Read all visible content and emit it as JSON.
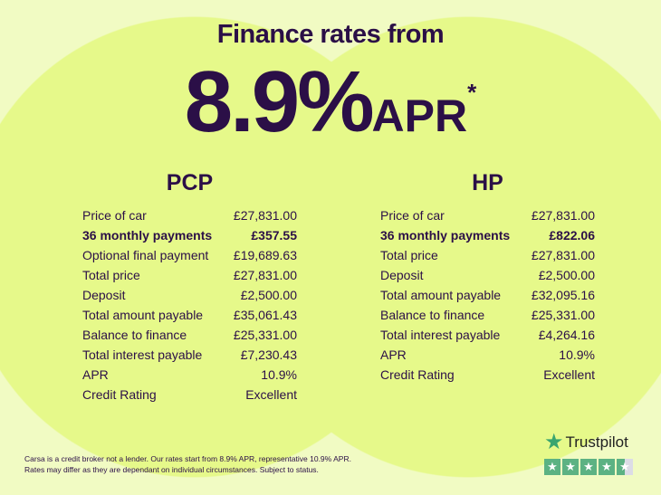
{
  "header": {
    "title": "Finance rates from",
    "rate": "8.9%",
    "rate_suffix": "APR",
    "asterisk": "*"
  },
  "pcp": {
    "title": "PCP",
    "rows": [
      {
        "label": "Price of car",
        "value": "£27,831.00"
      },
      {
        "label": "36 monthly payments",
        "value": "£357.55",
        "bold": true
      },
      {
        "label": "Optional final payment",
        "value": "£19,689.63"
      },
      {
        "label": "Total price",
        "value": "£27,831.00"
      },
      {
        "label": "Deposit",
        "value": "£2,500.00"
      },
      {
        "label": "Total amount payable",
        "value": "£35,061.43"
      },
      {
        "label": "Balance to finance",
        "value": "£25,331.00"
      },
      {
        "label": "Total interest payable",
        "value": "£7,230.43"
      },
      {
        "label": "APR",
        "value": "10.9%"
      },
      {
        "label": "Credit Rating",
        "value": "Excellent"
      }
    ]
  },
  "hp": {
    "title": "HP",
    "rows": [
      {
        "label": "Price of car",
        "value": "£27,831.00"
      },
      {
        "label": "36 monthly payments",
        "value": "£822.06",
        "bold": true
      },
      {
        "label": "Total price",
        "value": "£27,831.00"
      },
      {
        "label": "Deposit",
        "value": "£2,500.00"
      },
      {
        "label": "Total amount payable",
        "value": "£32,095.16"
      },
      {
        "label": "Balance to finance",
        "value": "£25,331.00"
      },
      {
        "label": "Total interest payable",
        "value": "£4,264.16"
      },
      {
        "label": "APR",
        "value": "10.9%"
      },
      {
        "label": "Credit Rating",
        "value": "Excellent"
      }
    ]
  },
  "disclaimer": {
    "line1": "Carsa is a credit broker not a lender. Our rates start from 8.9% APR, representative 10.9% APR.",
    "line2": "Rates may differ as they are dependant on individual circumstances. Subject to status."
  },
  "trustpilot": {
    "label": "Trustpilot",
    "rating_stars": 4.5,
    "brand_color": "#00b67a"
  },
  "colors": {
    "text": "#2b0f47",
    "background": "#f1fbc3",
    "circle": "#e6f98a"
  }
}
